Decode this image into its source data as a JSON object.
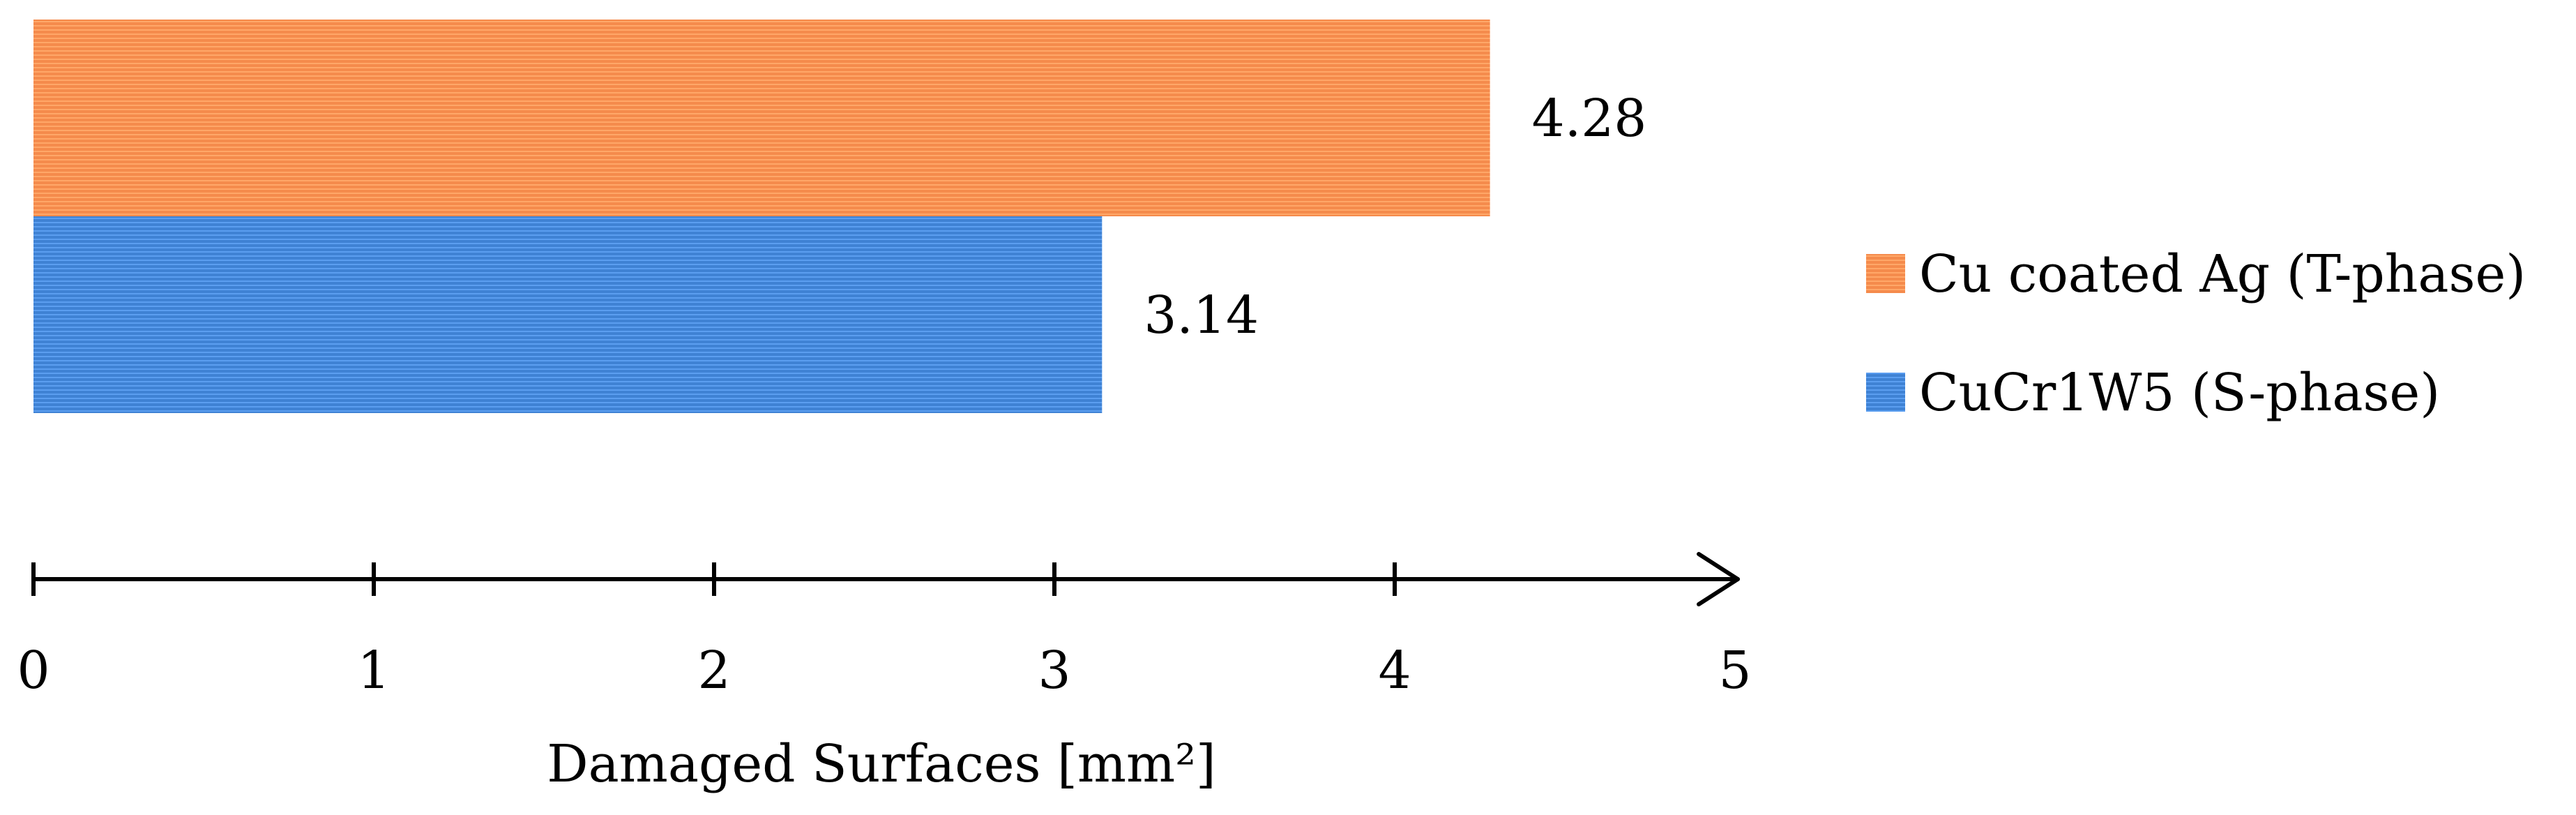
{
  "chart_data": {
    "type": "bar",
    "orientation": "horizontal",
    "categories": [
      ""
    ],
    "series": [
      {
        "name": "Cu coated Ag (T-phase)",
        "values": [
          4.28
        ],
        "color": "#f58b4c"
      },
      {
        "name": "CuCr1W5 (S-phase)",
        "values": [
          3.14
        ],
        "color": "#3f82d4"
      }
    ],
    "data_labels": [
      "4.28",
      "3.14"
    ],
    "xlabel": "Damaged Surfaces [mm²]",
    "ylabel": "",
    "xlim": [
      0,
      5
    ],
    "xticks": [
      0,
      1,
      2,
      3,
      4,
      5
    ],
    "xtick_labels": [
      "0",
      "1",
      "2",
      "3",
      "4",
      "5"
    ],
    "grid": false,
    "legend_position": "right",
    "bar_texture": "horizontal-stripes"
  }
}
